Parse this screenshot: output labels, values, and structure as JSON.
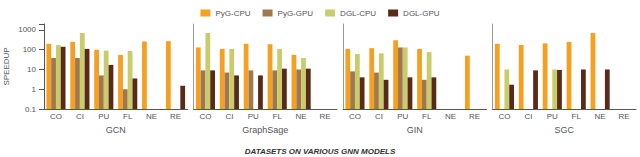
{
  "chart_data": [
    {
      "type": "bar",
      "xlabel": "GCN",
      "ylabel": "SPEEDUP",
      "categories": [
        "CO",
        "CI",
        "PU",
        "FL",
        "NE",
        "RE"
      ],
      "series": [
        {
          "name": "PyG-CPU",
          "color": "#F5A020",
          "values": [
            200,
            250,
            100,
            55,
            260,
            270
          ]
        },
        {
          "name": "PyG-GPU",
          "color": "#A07850",
          "values": [
            38,
            38,
            5,
            1.0,
            null,
            null
          ]
        },
        {
          "name": "DGL-CPU",
          "color": "#C8CC6A",
          "values": [
            170,
            700,
            90,
            85,
            null,
            null
          ]
        },
        {
          "name": "DGL-GPU",
          "color": "#5A2A18",
          "values": [
            140,
            110,
            17,
            3.5,
            null,
            1.5
          ]
        }
      ],
      "log": "y",
      "ylim": [
        0.1,
        2000
      ],
      "yticks": [
        0.1,
        1,
        10,
        100,
        1000
      ],
      "grid": false,
      "legend": "top",
      "annotations": [
        "DATASETS ON VARIOUS GNN MODELS"
      ]
    },
    {
      "type": "bar",
      "xlabel": "GraphSage",
      "categories": [
        "CO",
        "CI",
        "PU",
        "FL",
        "NE",
        "RE"
      ],
      "series": [
        {
          "name": "PyG-CPU",
          "color": "#F5A020",
          "values": [
            130,
            110,
            200,
            190,
            55,
            null
          ]
        },
        {
          "name": "PyG-GPU",
          "color": "#A07850",
          "values": [
            9,
            7,
            9,
            9,
            10,
            null
          ]
        },
        {
          "name": "DGL-CPU",
          "color": "#C8CC6A",
          "values": [
            700,
            110,
            null,
            110,
            38,
            null
          ]
        },
        {
          "name": "DGL-GPU",
          "color": "#5A2A18",
          "values": [
            9,
            5,
            5,
            11,
            11,
            null
          ]
        }
      ],
      "log": "y",
      "ylim": [
        0.1,
        2000
      ],
      "grid": false,
      "tick_labels": "x"
    },
    {
      "type": "bar",
      "xlabel": "GIN",
      "categories": [
        "CO",
        "CI",
        "PU",
        "FL",
        "NE",
        "RE"
      ],
      "series": [
        {
          "name": "PyG-CPU",
          "color": "#F5A020",
          "values": [
            110,
            120,
            300,
            110,
            null,
            50
          ]
        },
        {
          "name": "PyG-GPU",
          "color": "#A07850",
          "values": [
            8,
            7,
            130,
            3,
            null,
            null
          ]
        },
        {
          "name": "DGL-CPU",
          "color": "#C8CC6A",
          "values": [
            60,
            65,
            130,
            75,
            null,
            null
          ]
        },
        {
          "name": "DGL-GPU",
          "color": "#5A2A18",
          "values": [
            4,
            3,
            4,
            4,
            null,
            null
          ]
        }
      ],
      "log": "y",
      "ylim": [
        0.1,
        2000
      ],
      "grid": false,
      "tick_labels": "x"
    },
    {
      "type": "bar",
      "xlabel": "SGC",
      "categories": [
        "CO",
        "CI",
        "PU",
        "FL",
        "NE",
        "RE"
      ],
      "series": [
        {
          "name": "PyG-CPU",
          "color": "#F5A020",
          "values": [
            200,
            175,
            210,
            250,
            700,
            null
          ]
        },
        {
          "name": "PyG-GPU",
          "color": "#A07850",
          "values": [
            null,
            null,
            null,
            null,
            null,
            null
          ]
        },
        {
          "name": "DGL-CPU",
          "color": "#C8CC6A",
          "values": [
            10,
            null,
            10,
            null,
            null,
            null
          ]
        },
        {
          "name": "DGL-GPU",
          "color": "#5A2A18",
          "values": [
            1.7,
            9,
            9.5,
            10,
            10,
            null
          ]
        }
      ],
      "log": "y",
      "ylim": [
        0.1,
        2000
      ],
      "grid": false,
      "tick_labels": "x"
    }
  ]
}
